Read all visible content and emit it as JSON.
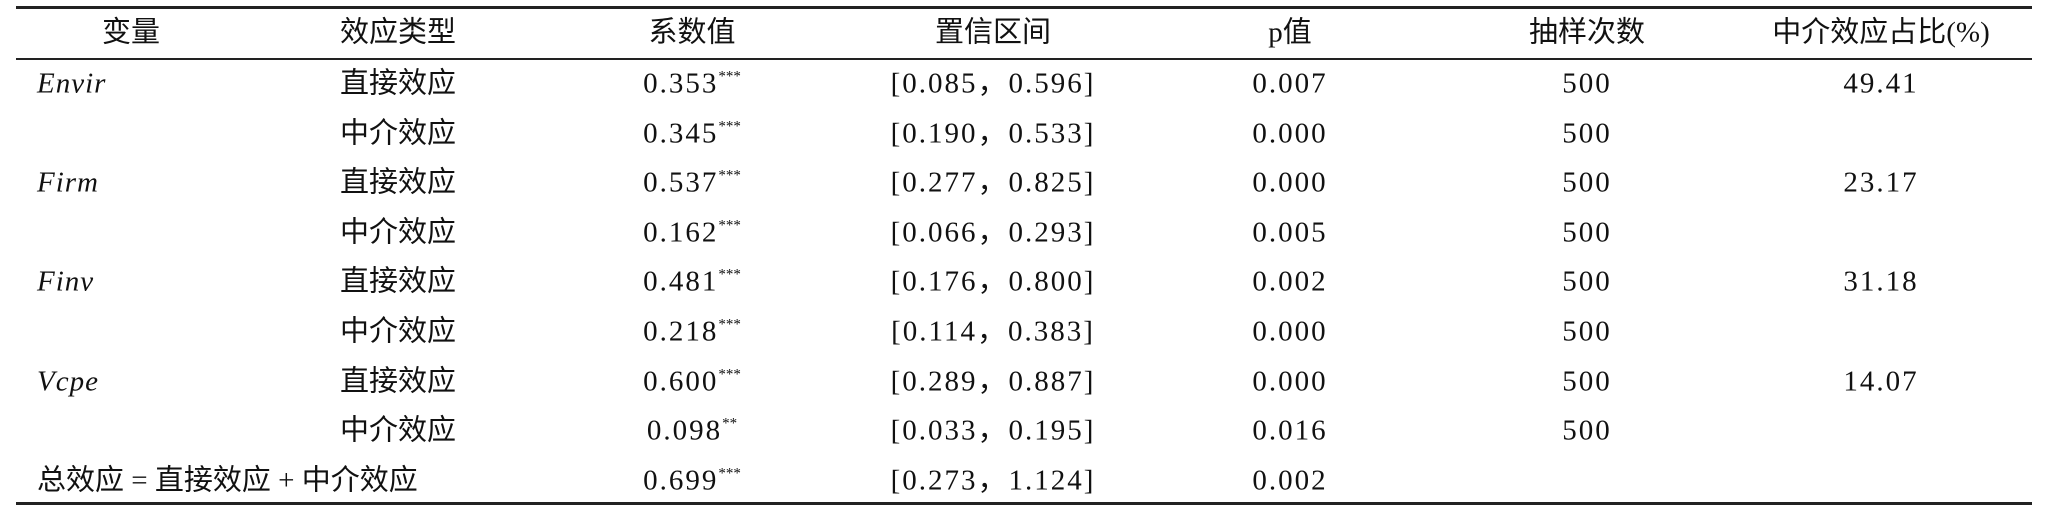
{
  "table": {
    "columns": [
      "变量",
      "效应类型",
      "系数值",
      "置信区间",
      "p值",
      "抽样次数",
      "中介效应占比(%)"
    ],
    "rows": [
      {
        "variable": "Envir",
        "effect_type": "直接效应",
        "coef": "0.353",
        "stars": "***",
        "ci": "[0.085，0.596]",
        "p": "0.007",
        "samples": "500",
        "share": "49.41"
      },
      {
        "effect_type": "中介效应",
        "coef": "0.345",
        "stars": "***",
        "ci": "[0.190，0.533]",
        "p": "0.000",
        "samples": "500"
      },
      {
        "variable": "Firm",
        "effect_type": "直接效应",
        "coef": "0.537",
        "stars": "***",
        "ci": "[0.277，0.825]",
        "p": "0.000",
        "samples": "500",
        "share": "23.17"
      },
      {
        "effect_type": "中介效应",
        "coef": "0.162",
        "stars": "***",
        "ci": "[0.066，0.293]",
        "p": "0.005",
        "samples": "500"
      },
      {
        "variable": "Finv",
        "effect_type": "直接效应",
        "coef": "0.481",
        "stars": "***",
        "ci": "[0.176，0.800]",
        "p": "0.002",
        "samples": "500",
        "share": "31.18"
      },
      {
        "effect_type": "中介效应",
        "coef": "0.218",
        "stars": "***",
        "ci": "[0.114，0.383]",
        "p": "0.000",
        "samples": "500"
      },
      {
        "variable": "Vcpe",
        "effect_type": "直接效应",
        "coef": "0.600",
        "stars": "***",
        "ci": "[0.289，0.887]",
        "p": "0.000",
        "samples": "500",
        "share": "14.07"
      },
      {
        "effect_type": "中介效应",
        "coef": "0.098",
        "stars": "**",
        "ci": "[0.033，0.195]",
        "p": "0.016",
        "samples": "500"
      },
      {
        "label": "总效应 = 直接效应 + 中介效应",
        "coef": "0.699",
        "stars": "***",
        "ci": "[0.273，1.124]",
        "p": "0.002"
      }
    ]
  }
}
